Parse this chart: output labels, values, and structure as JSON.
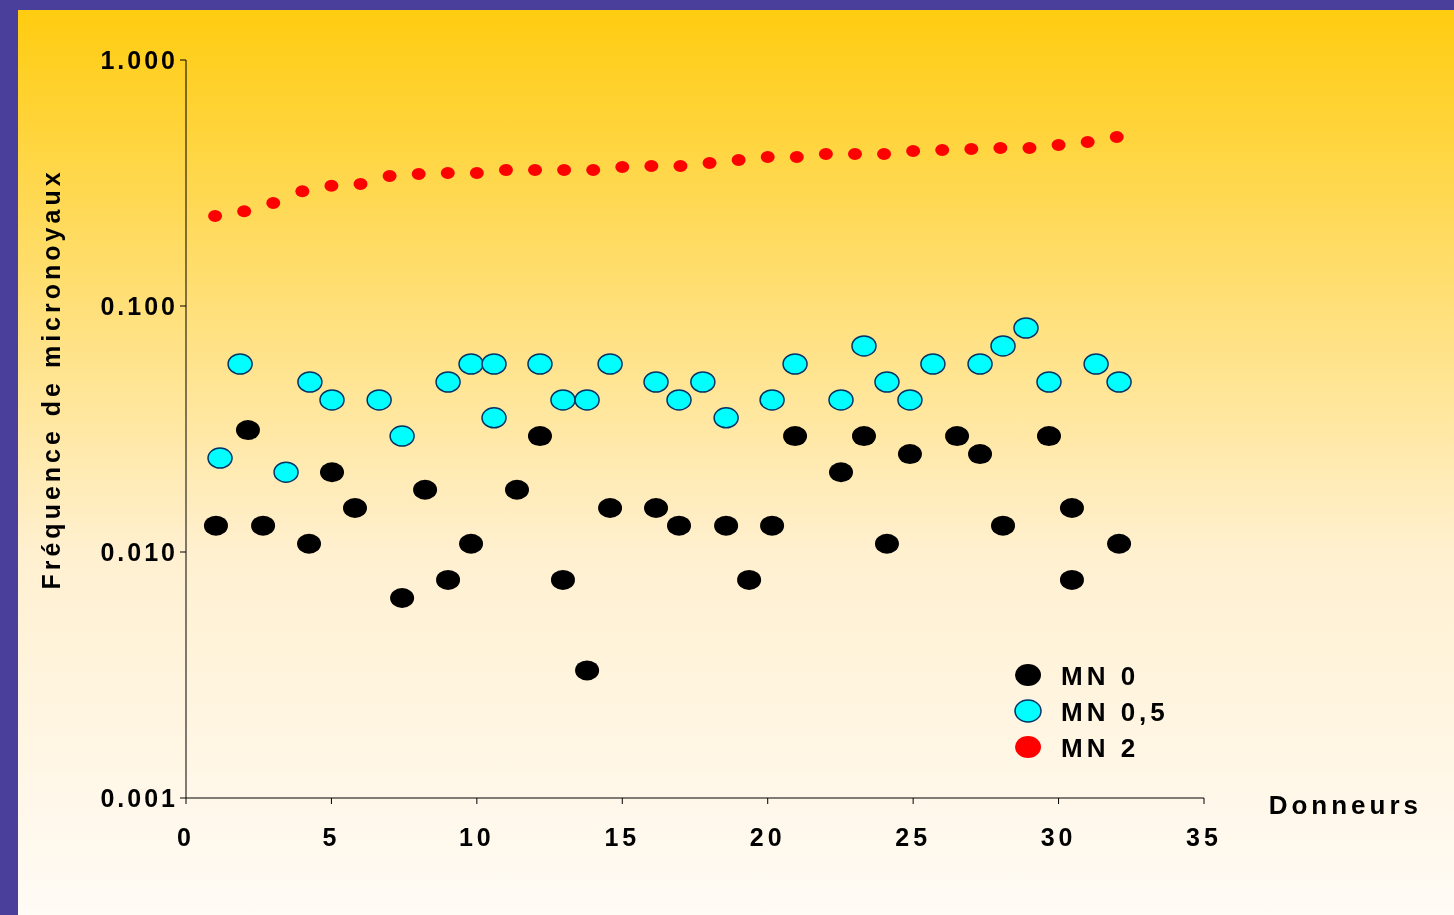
{
  "chart_data": {
    "type": "scatter",
    "xlabel": "Donneurs",
    "ylabel": "Fréquence de micronoyaux",
    "log": "y",
    "xlim": [
      0,
      35
    ],
    "xticks": [
      0,
      5,
      10,
      15,
      20,
      25,
      30,
      35
    ],
    "ylim": [
      0.001,
      1
    ],
    "yticks": [
      {
        "value": 0.001,
        "label": "0.001"
      },
      {
        "value": 0.01,
        "label": "0.010"
      },
      {
        "value": 0.1,
        "label": "0.100"
      },
      {
        "value": 1,
        "label": "1.000"
      }
    ],
    "grid": false,
    "legend": "bottom right",
    "marker": "circle",
    "series": [
      {
        "name": "MN 0",
        "color": "#000000",
        "x": [
          1.03,
          2.13,
          2.65,
          4.23,
          5.02,
          5.81,
          7.43,
          8.22,
          9.01,
          9.8,
          11.38,
          12.17,
          12.96,
          13.79,
          14.58,
          16.16,
          16.95,
          18.57,
          19.36,
          20.15,
          20.94,
          22.52,
          23.31,
          24.1,
          24.89,
          26.51,
          27.3,
          28.09,
          29.67,
          30.46,
          30.46,
          32.08
        ],
        "values": [
          0.0128,
          0.0313,
          0.0128,
          0.0108,
          0.0211,
          0.0151,
          0.0065,
          0.0179,
          0.0077,
          0.0108,
          0.0179,
          0.0296,
          0.0077,
          0.0033,
          0.0151,
          0.0151,
          0.0128,
          0.0128,
          0.0077,
          0.0128,
          0.0296,
          0.0211,
          0.0296,
          0.0108,
          0.025,
          0.0296,
          0.025,
          0.0128,
          0.0296,
          0.0151,
          0.0077,
          0.0108
        ]
      },
      {
        "name": "MN 0,5",
        "color": "#00ffff",
        "x": [
          1.17,
          1.86,
          3.44,
          4.26,
          5.02,
          6.64,
          7.43,
          9.01,
          9.8,
          10.59,
          10.59,
          12.17,
          12.96,
          13.79,
          14.58,
          16.16,
          16.95,
          17.77,
          18.57,
          20.15,
          20.94,
          22.52,
          23.31,
          24.1,
          24.89,
          25.68,
          27.3,
          28.09,
          28.88,
          29.67,
          31.29,
          32.08
        ],
        "values": [
          0.0241,
          0.0581,
          0.0211,
          0.0491,
          0.0415,
          0.0415,
          0.0296,
          0.0491,
          0.0581,
          0.0581,
          0.0351,
          0.0581,
          0.0415,
          0.0415,
          0.0581,
          0.0491,
          0.0415,
          0.0491,
          0.0351,
          0.0415,
          0.0581,
          0.0415,
          0.0688,
          0.0491,
          0.0415,
          0.0581,
          0.0581,
          0.0688,
          0.0814,
          0.0491,
          0.0581,
          0.0491
        ]
      },
      {
        "name": "MN 2",
        "color": "#ff0000",
        "x": [
          1,
          2,
          3,
          4,
          5,
          6,
          7,
          8,
          9,
          10,
          11,
          12,
          13,
          14,
          15,
          16,
          17,
          18,
          19,
          20,
          21,
          22,
          23,
          24,
          25,
          26,
          27,
          28,
          29,
          30,
          31,
          32
        ],
        "values": [
          0.232,
          0.243,
          0.262,
          0.293,
          0.308,
          0.313,
          0.338,
          0.344,
          0.347,
          0.347,
          0.357,
          0.357,
          0.357,
          0.357,
          0.367,
          0.371,
          0.371,
          0.381,
          0.392,
          0.403,
          0.403,
          0.415,
          0.415,
          0.415,
          0.427,
          0.431,
          0.435,
          0.439,
          0.439,
          0.451,
          0.464,
          0.486
        ]
      }
    ]
  }
}
